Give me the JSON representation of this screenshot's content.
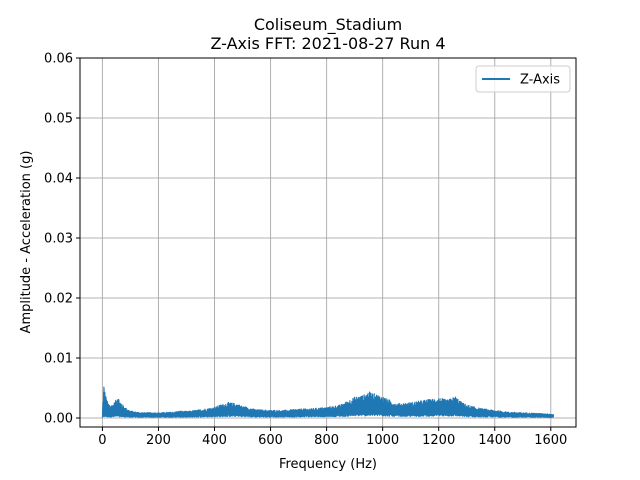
{
  "chart_data": {
    "type": "line",
    "title": "Coliseum_Stadium",
    "subtitle": "Z-Axis FFT: 2021-08-27 Run 4",
    "xlabel": "Frequency (Hz)",
    "ylabel": "Amplitude - Acceleration (g)",
    "xlim": [
      -80,
      1690
    ],
    "ylim": [
      -0.0015,
      0.06
    ],
    "x_ticks": [
      0,
      200,
      400,
      600,
      800,
      1000,
      1200,
      1400,
      1600
    ],
    "x_tick_labels": [
      "0",
      "200",
      "400",
      "600",
      "800",
      "1000",
      "1200",
      "1400",
      "1600"
    ],
    "y_ticks": [
      0.0,
      0.01,
      0.02,
      0.03,
      0.04,
      0.05,
      0.06
    ],
    "y_tick_labels": [
      "0.00",
      "0.01",
      "0.02",
      "0.03",
      "0.04",
      "0.05",
      "0.06"
    ],
    "grid": true,
    "legend_position": "top-right",
    "series": [
      {
        "name": "Z-Axis",
        "color": "#1f77b4",
        "x": [
          0,
          5,
          10,
          15,
          20,
          30,
          40,
          50,
          55,
          60,
          70,
          80,
          100,
          120,
          150,
          200,
          250,
          280,
          300,
          350,
          400,
          420,
          450,
          480,
          500,
          550,
          600,
          650,
          700,
          750,
          800,
          850,
          880,
          900,
          930,
          950,
          1000,
          1050,
          1100,
          1150,
          1180,
          1200,
          1230,
          1260,
          1280,
          1300,
          1350,
          1400,
          1450,
          1500,
          1550,
          1600,
          1610
        ],
        "upper": [
          0.0012,
          0.0058,
          0.0042,
          0.0032,
          0.0025,
          0.0022,
          0.0024,
          0.0032,
          0.0042,
          0.003,
          0.0024,
          0.0018,
          0.0012,
          0.001,
          0.0009,
          0.0009,
          0.001,
          0.0012,
          0.0011,
          0.0014,
          0.0018,
          0.0022,
          0.0026,
          0.0024,
          0.002,
          0.0014,
          0.0013,
          0.0013,
          0.0015,
          0.0016,
          0.0018,
          0.0022,
          0.003,
          0.0035,
          0.0038,
          0.0044,
          0.0036,
          0.0024,
          0.0026,
          0.003,
          0.0032,
          0.0034,
          0.003,
          0.0036,
          0.0027,
          0.0022,
          0.0016,
          0.0013,
          0.001,
          0.0009,
          0.0008,
          0.0007,
          0.0006
        ],
        "lower": [
          0.0002,
          0.0004,
          0.0005,
          0.0004,
          0.0004,
          0.0004,
          0.0004,
          0.0005,
          0.0006,
          0.0005,
          0.0004,
          0.0004,
          0.0003,
          0.0003,
          0.0003,
          0.0003,
          0.0003,
          0.0003,
          0.0003,
          0.0004,
          0.0005,
          0.0005,
          0.0006,
          0.0006,
          0.0005,
          0.0004,
          0.0004,
          0.0004,
          0.0004,
          0.0005,
          0.0005,
          0.0006,
          0.0007,
          0.0008,
          0.0008,
          0.0009,
          0.0008,
          0.0006,
          0.0006,
          0.0007,
          0.0007,
          0.0008,
          0.0007,
          0.0008,
          0.0006,
          0.0005,
          0.0004,
          0.0004,
          0.0003,
          0.0003,
          0.0003,
          0.0002,
          0.0002
        ]
      }
    ]
  }
}
